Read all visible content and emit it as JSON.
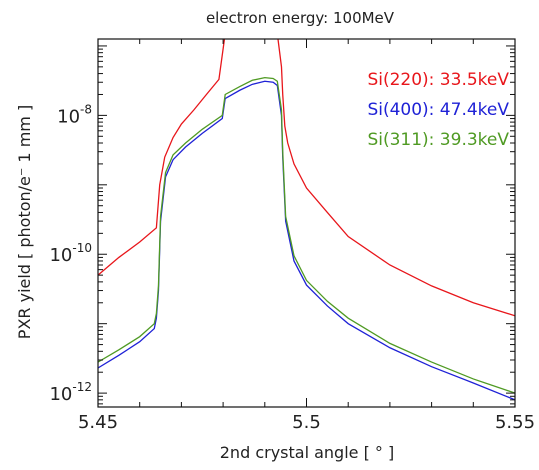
{
  "chart_data": {
    "type": "line",
    "title": "electron energy: 100MeV",
    "xlabel": "2nd crystal angle [ ° ]",
    "ylabel": "PXR yield [ photon/e⁻ 1 mm ]",
    "xlim": [
      5.45,
      5.55
    ],
    "ylim_log10": [
      -12.2,
      -6.9
    ],
    "y_scale": "log",
    "grid": false,
    "legend_position": "top-right",
    "xticks": [
      {
        "value": 5.45,
        "label": "5.45"
      },
      {
        "value": 5.5,
        "label": "5.5"
      },
      {
        "value": 5.55,
        "label": "5.55"
      }
    ],
    "yticks": [
      {
        "value": -8,
        "base": "10",
        "exp": "-8"
      },
      {
        "value": -10,
        "base": "10",
        "exp": "-10"
      },
      {
        "value": -12,
        "base": "10",
        "exp": "-12"
      }
    ],
    "series": [
      {
        "name": "Si(220): 33.5keV",
        "color": "#e8161b",
        "x": [
          5.45,
          5.455,
          5.46,
          5.464,
          5.4648,
          5.466,
          5.468,
          5.47,
          5.473,
          5.476,
          5.479,
          5.4805,
          5.484,
          5.487,
          5.49,
          5.492,
          5.493,
          5.494,
          5.4943,
          5.4948,
          5.4955,
          5.497,
          5.5,
          5.505,
          5.51,
          5.52,
          5.53,
          5.54,
          5.55
        ],
        "y": [
          5e-11,
          9e-11,
          1.5e-10,
          2.4e-10,
          1e-09,
          2.5e-09,
          4.8e-09,
          7.5e-09,
          1.2e-08,
          2e-08,
          3.3e-08,
          1.5e-07,
          1.9e-07,
          2.3e-07,
          2.45e-07,
          2.2e-07,
          1.5e-07,
          5e-08,
          2e-08,
          7e-09,
          4e-09,
          2e-09,
          9e-10,
          4e-10,
          1.8e-10,
          7e-11,
          3.5e-11,
          2e-11,
          1.3e-11
        ]
      },
      {
        "name": "Si(400): 47.4keV",
        "color": "#1f22d6",
        "x": [
          5.45,
          5.455,
          5.46,
          5.4635,
          5.464,
          5.4645,
          5.465,
          5.4662,
          5.468,
          5.471,
          5.475,
          5.4798,
          5.4805,
          5.484,
          5.487,
          5.49,
          5.492,
          5.493,
          5.494,
          5.4943,
          5.495,
          5.497,
          5.5,
          5.505,
          5.51,
          5.52,
          5.53,
          5.54,
          5.55
        ],
        "y": [
          2.3e-12,
          3.5e-12,
          5.5e-12,
          8.5e-12,
          1.2e-11,
          3e-11,
          3e-10,
          1.3e-09,
          2.3e-09,
          3.5e-09,
          5.5e-09,
          9e-09,
          1.75e-08,
          2.3e-08,
          2.8e-08,
          3.1e-08,
          3e-08,
          2.7e-08,
          1e-08,
          2.5e-09,
          3e-10,
          8e-11,
          3.6e-11,
          1.8e-11,
          1e-11,
          4.5e-12,
          2.4e-12,
          1.4e-12,
          8e-13
        ]
      },
      {
        "name": "Si(311): 39.3keV",
        "color": "#4f9a23",
        "x": [
          5.45,
          5.455,
          5.46,
          5.4635,
          5.464,
          5.4645,
          5.465,
          5.4662,
          5.468,
          5.471,
          5.475,
          5.4798,
          5.4805,
          5.484,
          5.487,
          5.49,
          5.492,
          5.493,
          5.494,
          5.4943,
          5.495,
          5.497,
          5.5,
          5.505,
          5.51,
          5.52,
          5.53,
          5.54,
          5.55
        ],
        "y": [
          2.8e-12,
          4.2e-12,
          6.5e-12,
          1e-11,
          1.4e-11,
          3.5e-11,
          3.5e-10,
          1.5e-09,
          2.7e-09,
          4e-09,
          6.3e-09,
          1e-08,
          2e-08,
          2.6e-08,
          3.2e-08,
          3.5e-08,
          3.4e-08,
          3.1e-08,
          1.2e-08,
          3e-09,
          3.5e-10,
          9.5e-11,
          4.2e-11,
          2.1e-11,
          1.2e-11,
          5.2e-12,
          2.8e-12,
          1.6e-12,
          1e-12
        ]
      }
    ]
  }
}
